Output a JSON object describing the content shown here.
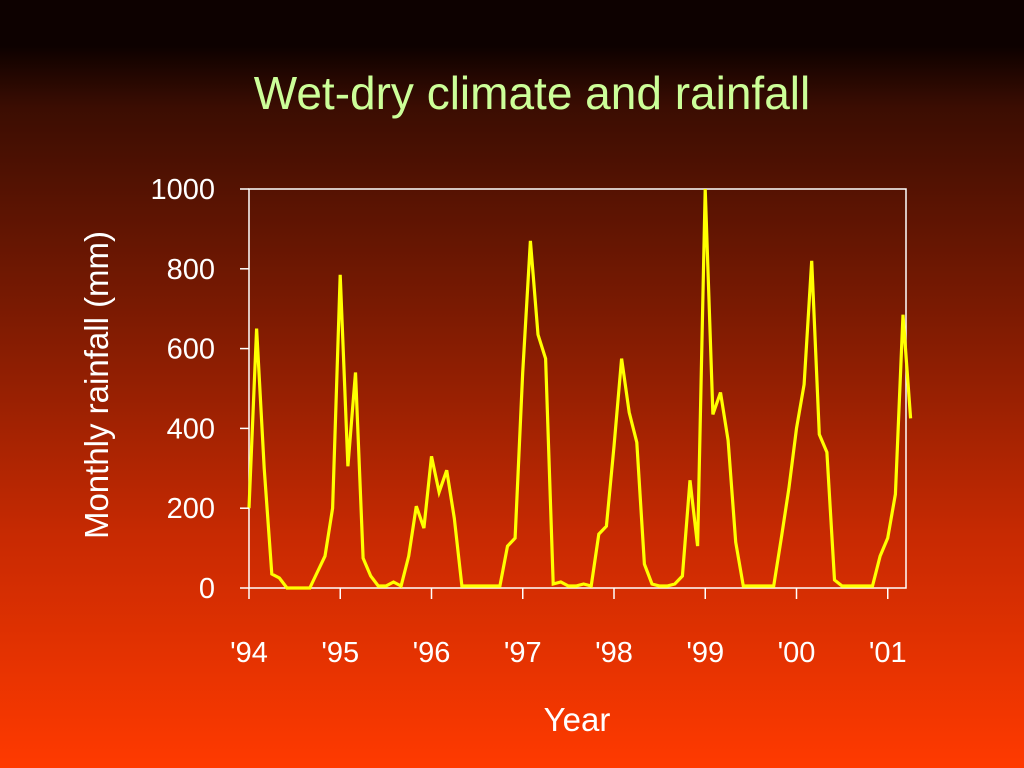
{
  "colors": {
    "line": "#ffff00",
    "axis": "#ffffff",
    "title": "#ccff99"
  },
  "chart_data": {
    "type": "line",
    "title": "Wet-dry climate and rainfall",
    "xlabel": "Year",
    "ylabel": "Monthly rainfall (mm)",
    "ylim": [
      0,
      1000
    ],
    "yticks": [
      0,
      200,
      400,
      600,
      800,
      1000
    ],
    "xlim": [
      1994,
      2001.2
    ],
    "xticks": [
      {
        "value": 1994,
        "label": "'94"
      },
      {
        "value": 1995,
        "label": "'95"
      },
      {
        "value": 1996,
        "label": "'96"
      },
      {
        "value": 1997,
        "label": "'97"
      },
      {
        "value": 1998,
        "label": "'98"
      },
      {
        "value": 1999,
        "label": "'99"
      },
      {
        "value": 2000,
        "label": "'00"
      },
      {
        "value": 2001,
        "label": "'01"
      }
    ],
    "grid": false,
    "series": [
      {
        "x_start": 1994.0,
        "x_step_months": 1,
        "values": [
          200,
          650,
          300,
          35,
          25,
          0,
          0,
          0,
          0,
          40,
          80,
          200,
          785,
          305,
          540,
          75,
          30,
          5,
          5,
          15,
          5,
          80,
          205,
          150,
          330,
          240,
          295,
          175,
          5,
          5,
          5,
          5,
          5,
          5,
          105,
          125,
          540,
          870,
          635,
          575,
          10,
          15,
          5,
          5,
          10,
          5,
          135,
          155,
          355,
          575,
          440,
          365,
          60,
          10,
          5,
          5,
          10,
          30,
          270,
          105,
          1000,
          435,
          490,
          370,
          115,
          5,
          5,
          5,
          5,
          5,
          125,
          250,
          400,
          510,
          820,
          385,
          340,
          20,
          5,
          5,
          5,
          5,
          5,
          80,
          125,
          235,
          685,
          425
        ]
      }
    ]
  }
}
